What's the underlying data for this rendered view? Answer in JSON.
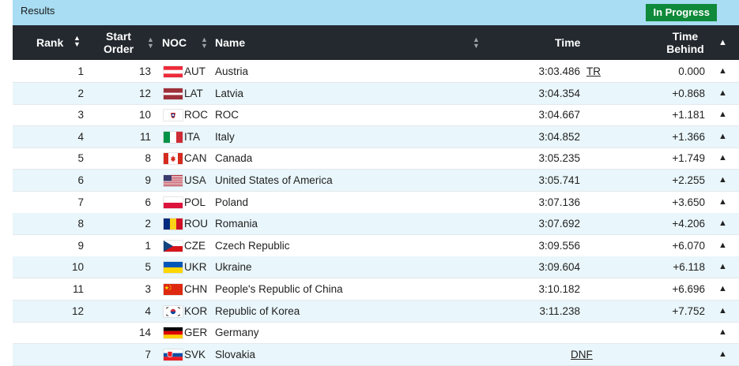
{
  "header": {
    "title": "Results",
    "status": "In Progress"
  },
  "columns": {
    "rank": "Rank",
    "start_order_1": "Start",
    "start_order_2": "Order",
    "noc": "NOC",
    "name": "Name",
    "time": "Time",
    "behind_1": "Time",
    "behind_2": "Behind"
  },
  "icons": {
    "sort": "sort-arrows-icon",
    "expand": "chevron-up-icon"
  },
  "rows": [
    {
      "rank": "1",
      "start": "13",
      "noc": "AUT",
      "name": "Austria",
      "time": "3:03.486",
      "note": "TR",
      "behind": "0.000",
      "flag": "aut"
    },
    {
      "rank": "2",
      "start": "12",
      "noc": "LAT",
      "name": "Latvia",
      "time": "3:04.354",
      "note": "",
      "behind": "+0.868",
      "flag": "lat"
    },
    {
      "rank": "3",
      "start": "10",
      "noc": "ROC",
      "name": "ROC",
      "time": "3:04.667",
      "note": "",
      "behind": "+1.181",
      "flag": "roc"
    },
    {
      "rank": "4",
      "start": "11",
      "noc": "ITA",
      "name": "Italy",
      "time": "3:04.852",
      "note": "",
      "behind": "+1.366",
      "flag": "ita"
    },
    {
      "rank": "5",
      "start": "8",
      "noc": "CAN",
      "name": "Canada",
      "time": "3:05.235",
      "note": "",
      "behind": "+1.749",
      "flag": "can"
    },
    {
      "rank": "6",
      "start": "9",
      "noc": "USA",
      "name": "United States of America",
      "time": "3:05.741",
      "note": "",
      "behind": "+2.255",
      "flag": "usa"
    },
    {
      "rank": "7",
      "start": "6",
      "noc": "POL",
      "name": "Poland",
      "time": "3:07.136",
      "note": "",
      "behind": "+3.650",
      "flag": "pol"
    },
    {
      "rank": "8",
      "start": "2",
      "noc": "ROU",
      "name": "Romania",
      "time": "3:07.692",
      "note": "",
      "behind": "+4.206",
      "flag": "rou"
    },
    {
      "rank": "9",
      "start": "1",
      "noc": "CZE",
      "name": "Czech Republic",
      "time": "3:09.556",
      "note": "",
      "behind": "+6.070",
      "flag": "cze"
    },
    {
      "rank": "10",
      "start": "5",
      "noc": "UKR",
      "name": "Ukraine",
      "time": "3:09.604",
      "note": "",
      "behind": "+6.118",
      "flag": "ukr"
    },
    {
      "rank": "11",
      "start": "3",
      "noc": "CHN",
      "name": "People's Republic of China",
      "time": "3:10.182",
      "note": "",
      "behind": "+6.696",
      "flag": "chn"
    },
    {
      "rank": "12",
      "start": "4",
      "noc": "KOR",
      "name": "Republic of Korea",
      "time": "3:11.238",
      "note": "",
      "behind": "+7.752",
      "flag": "kor"
    },
    {
      "rank": "",
      "start": "14",
      "noc": "GER",
      "name": "Germany",
      "time": "",
      "note": "",
      "behind": "",
      "flag": "ger"
    },
    {
      "rank": "",
      "start": "7",
      "noc": "SVK",
      "name": "Slovakia",
      "time": "",
      "note": "DNF",
      "behind": "",
      "flag": "svk"
    }
  ]
}
